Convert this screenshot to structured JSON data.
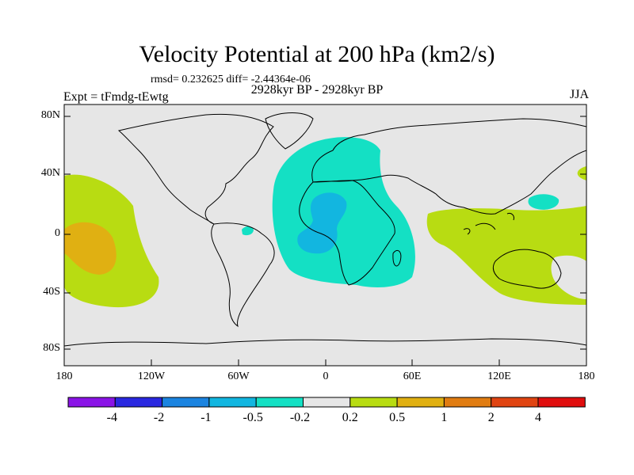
{
  "title": "Velocity Potential at 200 hPa (km2/s)",
  "stats": "rmsd= 0.232625 diff= -2.44364e-06",
  "period": "2928kyr BP - 2928kyr BP",
  "experiment": "Expt = tFmdg-tEwtg",
  "season": "JJA",
  "axes": {
    "lat_labels": [
      "80N",
      "40N",
      "0",
      "40S",
      "80S"
    ],
    "lon_labels": [
      "180",
      "120W",
      "60W",
      "0",
      "60E",
      "120E",
      "180"
    ]
  },
  "colorbar": {
    "labels": [
      "-4",
      "-2",
      "-1",
      "-0.5",
      "-0.2",
      "0.2",
      "0.5",
      "1",
      "2",
      "4"
    ],
    "colors": [
      "#8a14e6",
      "#2a28e0",
      "#1b84e0",
      "#12b6e0",
      "#14e0c4",
      "#e6e6e6",
      "#b8dc12",
      "#e0b012",
      "#e07c12",
      "#e04412",
      "#e00e0e"
    ]
  },
  "map_colors": {
    "background": "#e6e6e6",
    "cyan": "#14e0c4",
    "blue": "#12b6e0",
    "green": "#b8dc12",
    "orange": "#e0b012"
  }
}
